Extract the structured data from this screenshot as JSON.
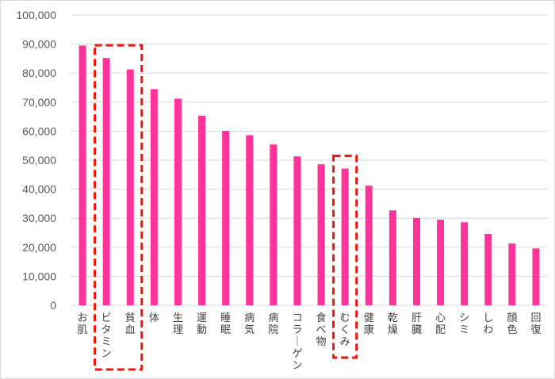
{
  "chart_data": {
    "type": "bar",
    "categories": [
      "お肌",
      "ビタミン",
      "貧血",
      "体",
      "生理",
      "運動",
      "睡眠",
      "病気",
      "病院",
      "コラーゲン",
      "食べ物",
      "むくみ",
      "健康",
      "乾燥",
      "肝臓",
      "心配",
      "シミ",
      "しわ",
      "顔色",
      "回復"
    ],
    "values": [
      89500,
      85200,
      81300,
      74500,
      71200,
      65300,
      60100,
      58600,
      55400,
      51300,
      48600,
      47100,
      41200,
      32700,
      30100,
      29500,
      28600,
      24600,
      21300,
      19600
    ],
    "ylim": [
      0,
      100000
    ],
    "yticks": [
      "0",
      "10,000",
      "20,000",
      "30,000",
      "40,000",
      "50,000",
      "60,000",
      "70,000",
      "80,000",
      "90,000",
      "100,000"
    ],
    "grid": true,
    "bar_color": "#ff3399",
    "highlight_color": "#e8160c",
    "highlighted_groups": [
      [
        "ビタミン",
        "貧血"
      ],
      [
        "むくみ"
      ]
    ]
  }
}
